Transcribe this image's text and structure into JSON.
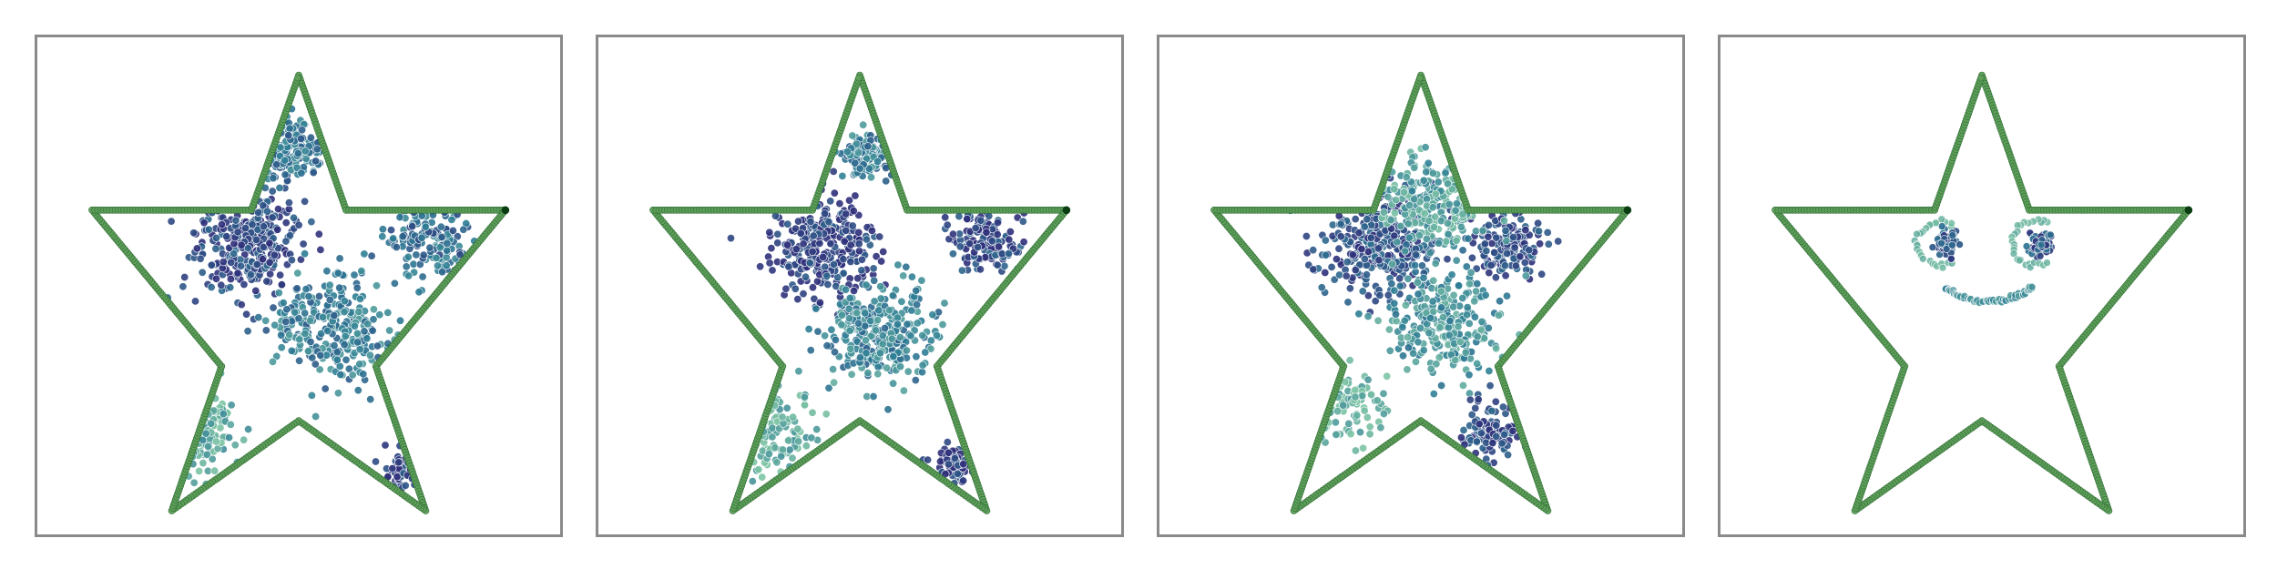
{
  "figure": {
    "colors": {
      "outline_fill": "#5e9e5a",
      "outline_stroke": "#2f6e34",
      "outline_dark": "#0b3d12",
      "point_dark": "#2f2f7a",
      "point_mid": "#2d7d95",
      "point_light": "#7dc4a4",
      "point_edge": "#ffffff",
      "frame": "#8a8a8a"
    }
  },
  "chart_data": [
    {
      "type": "scatter",
      "title": "",
      "xlabel": "",
      "ylabel": "",
      "grid": false,
      "legend": "none",
      "xlim": [
        -1.05,
        1.05
      ],
      "ylim": [
        -1.05,
        1.05
      ],
      "outline": {
        "shape": "five-pointed star",
        "vertices": [
          [
            0.0,
            0.89
          ],
          [
            0.19,
            0.32
          ],
          [
            0.83,
            0.32
          ],
          [
            0.31,
            -0.34
          ],
          [
            0.51,
            -0.95
          ],
          [
            0.0,
            -0.57
          ],
          [
            -0.51,
            -0.95
          ],
          [
            -0.31,
            -0.34
          ],
          [
            -0.83,
            0.32
          ],
          [
            -0.19,
            0.32
          ]
        ]
      },
      "clusters": [
        {
          "x": -0.2,
          "y": 0.18,
          "spread": 0.11,
          "count": 300,
          "density": 0.85
        },
        {
          "x": -0.03,
          "y": 0.58,
          "spread": 0.06,
          "count": 150,
          "density": 0.55
        },
        {
          "x": 0.52,
          "y": 0.2,
          "spread": 0.08,
          "count": 140,
          "density": 0.6
        },
        {
          "x": 0.13,
          "y": -0.18,
          "spread": 0.11,
          "count": 280,
          "density": 0.5
        },
        {
          "x": -0.42,
          "y": -0.62,
          "spread": 0.08,
          "count": 100,
          "density": 0.2
        },
        {
          "x": 0.42,
          "y": -0.78,
          "spread": 0.04,
          "count": 50,
          "density": 0.9
        }
      ]
    },
    {
      "type": "scatter",
      "title": "",
      "xlabel": "",
      "ylabel": "",
      "grid": false,
      "legend": "none",
      "xlim": [
        -1.05,
        1.05
      ],
      "ylim": [
        -1.05,
        1.05
      ],
      "outline": {
        "shape": "five-pointed star",
        "vertices": [
          [
            0.0,
            0.89
          ],
          [
            0.19,
            0.32
          ],
          [
            0.83,
            0.32
          ],
          [
            0.31,
            -0.34
          ],
          [
            0.51,
            -0.95
          ],
          [
            0.0,
            -0.57
          ],
          [
            -0.51,
            -0.95
          ],
          [
            -0.31,
            -0.34
          ],
          [
            -0.83,
            0.32
          ],
          [
            -0.19,
            0.32
          ]
        ]
      },
      "clusters": [
        {
          "x": -0.15,
          "y": 0.17,
          "spread": 0.11,
          "count": 300,
          "density": 0.9
        },
        {
          "x": 0.02,
          "y": 0.55,
          "spread": 0.05,
          "count": 120,
          "density": 0.5
        },
        {
          "x": 0.5,
          "y": 0.2,
          "spread": 0.07,
          "count": 140,
          "density": 0.85
        },
        {
          "x": 0.08,
          "y": -0.2,
          "spread": 0.11,
          "count": 280,
          "density": 0.45
        },
        {
          "x": -0.38,
          "y": -0.6,
          "spread": 0.09,
          "count": 110,
          "density": 0.15
        },
        {
          "x": 0.38,
          "y": -0.75,
          "spread": 0.05,
          "count": 60,
          "density": 0.95
        }
      ]
    },
    {
      "type": "scatter",
      "title": "",
      "xlabel": "",
      "ylabel": "",
      "grid": false,
      "legend": "none",
      "xlim": [
        -1.05,
        1.05
      ],
      "ylim": [
        -1.05,
        1.05
      ],
      "outline": {
        "shape": "five-pointed star",
        "vertices": [
          [
            0.0,
            0.89
          ],
          [
            0.19,
            0.32
          ],
          [
            0.83,
            0.32
          ],
          [
            0.31,
            -0.34
          ],
          [
            0.51,
            -0.95
          ],
          [
            0.0,
            -0.57
          ],
          [
            -0.51,
            -0.95
          ],
          [
            -0.31,
            -0.34
          ],
          [
            -0.83,
            0.32
          ],
          [
            -0.19,
            0.32
          ]
        ]
      },
      "clusters": [
        {
          "x": -0.15,
          "y": 0.17,
          "spread": 0.11,
          "count": 320,
          "density": 0.8
        },
        {
          "x": 0.35,
          "y": 0.18,
          "spread": 0.07,
          "count": 150,
          "density": 0.85
        },
        {
          "x": 0.05,
          "y": 0.35,
          "spread": 0.1,
          "count": 200,
          "density": 0.25
        },
        {
          "x": 0.1,
          "y": -0.15,
          "spread": 0.12,
          "count": 260,
          "density": 0.35
        },
        {
          "x": -0.3,
          "y": -0.5,
          "spread": 0.08,
          "count": 90,
          "density": 0.1
        },
        {
          "x": 0.28,
          "y": -0.62,
          "spread": 0.06,
          "count": 110,
          "density": 0.85
        }
      ]
    },
    {
      "type": "scatter",
      "title": "",
      "xlabel": "",
      "ylabel": "",
      "grid": false,
      "legend": "none",
      "xlim": [
        -1.05,
        1.05
      ],
      "ylim": [
        -1.05,
        1.05
      ],
      "outline": {
        "shape": "five-pointed star",
        "vertices": [
          [
            0.0,
            0.89
          ],
          [
            0.19,
            0.32
          ],
          [
            0.83,
            0.32
          ],
          [
            0.31,
            -0.34
          ],
          [
            0.51,
            -0.95
          ],
          [
            0.0,
            -0.57
          ],
          [
            -0.51,
            -0.95
          ],
          [
            -0.31,
            -0.34
          ],
          [
            -0.83,
            0.32
          ],
          [
            -0.19,
            0.32
          ]
        ]
      },
      "eyes": [
        {
          "x": -0.16,
          "y": 0.18,
          "core_radius": 0.05,
          "ring_radius": 0.1,
          "count": 70,
          "ring_count": 40
        },
        {
          "x": 0.22,
          "y": 0.18,
          "core_radius": 0.05,
          "ring_radius": 0.1,
          "count": 70,
          "ring_count": 40
        }
      ],
      "mouth": {
        "x": 0.03,
        "y": -0.06,
        "radius": 0.19,
        "start_deg": 205,
        "end_deg": 335,
        "count": 60
      }
    }
  ]
}
